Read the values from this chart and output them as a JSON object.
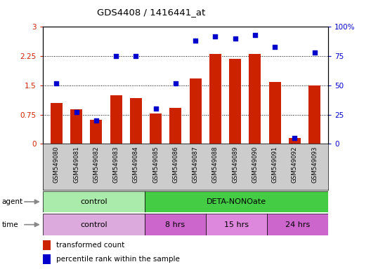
{
  "title": "GDS4408 / 1416441_at",
  "samples": [
    "GSM549080",
    "GSM549081",
    "GSM549082",
    "GSM549083",
    "GSM549084",
    "GSM549085",
    "GSM549086",
    "GSM549087",
    "GSM549088",
    "GSM549089",
    "GSM549090",
    "GSM549091",
    "GSM549092",
    "GSM549093"
  ],
  "transformed_count": [
    1.05,
    0.88,
    0.62,
    1.25,
    1.18,
    0.78,
    0.93,
    1.68,
    2.3,
    2.18,
    2.3,
    1.58,
    0.15,
    1.49
  ],
  "percentile_rank": [
    52,
    27,
    20,
    75,
    75,
    30,
    52,
    88,
    92,
    90,
    93,
    83,
    5,
    78
  ],
  "bar_color": "#cc2200",
  "dot_color": "#0000cc",
  "left_ylim": [
    0,
    3
  ],
  "right_ylim": [
    0,
    100
  ],
  "left_yticks": [
    0,
    0.75,
    1.5,
    2.25,
    3
  ],
  "right_yticks": [
    0,
    25,
    50,
    75,
    100
  ],
  "left_ytick_labels": [
    "0",
    "0.75",
    "1.5",
    "2.25",
    "3"
  ],
  "right_ytick_labels": [
    "0",
    "25",
    "50",
    "75",
    "100%"
  ],
  "agent_groups": [
    {
      "label": "control",
      "start": 0,
      "end": 5,
      "color": "#aaeaaa"
    },
    {
      "label": "DETA-NONOate",
      "start": 5,
      "end": 14,
      "color": "#44cc44"
    }
  ],
  "time_groups": [
    {
      "label": "control",
      "start": 0,
      "end": 5,
      "color": "#ddaadd"
    },
    {
      "label": "8 hrs",
      "start": 5,
      "end": 8,
      "color": "#cc66cc"
    },
    {
      "label": "15 hrs",
      "start": 8,
      "end": 11,
      "color": "#dd88dd"
    },
    {
      "label": "24 hrs",
      "start": 11,
      "end": 14,
      "color": "#cc66cc"
    }
  ],
  "bg_color": "#ffffff",
  "tick_label_color_left": "#cc2200",
  "tick_label_color_right": "#0000cc",
  "legend_bar_label": "transformed count",
  "legend_dot_label": "percentile rank within the sample",
  "sample_bg_color": "#cccccc"
}
